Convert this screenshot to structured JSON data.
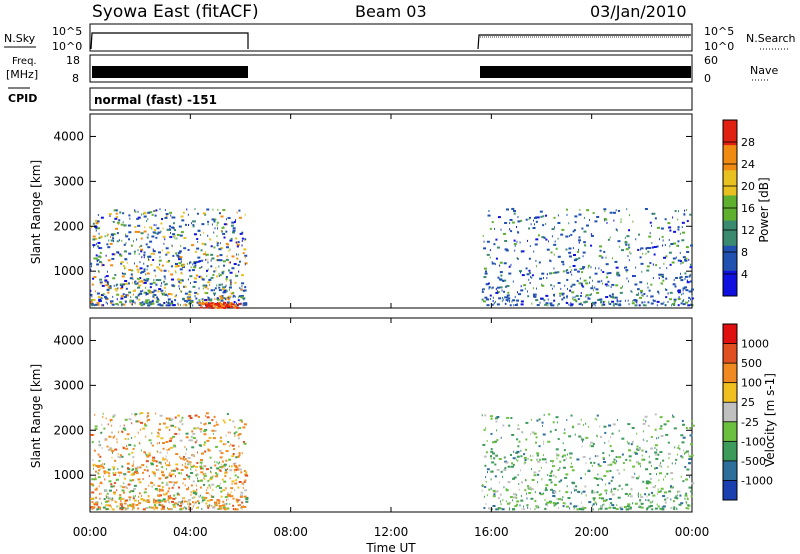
{
  "header": {
    "station": "Syowa East (fitACF)",
    "beam": "Beam 03",
    "date": "03/Jan/2010"
  },
  "status_panels": {
    "left_top_label": "N.Sky",
    "left_top_ticks": [
      "10^5",
      "10^0"
    ],
    "right_top_ticks": [
      "10^5",
      "10^0"
    ],
    "right_top_label": "N.Search",
    "left_mid_label_1": "Freq.",
    "left_mid_label_2": "[MHz]",
    "left_mid_ticks": [
      "18",
      "8"
    ],
    "right_mid_ticks": [
      "60",
      "0"
    ],
    "right_mid_label": "Nave",
    "cpid_label": "CPID",
    "cpid_value": "normal (fast) -151"
  },
  "chart_data": [
    {
      "type": "heatmap",
      "name": "power",
      "ylabel": "Slant Range [km]",
      "xlabel": "",
      "ylim": [
        180,
        4500
      ],
      "yticks": [
        "1000",
        "2000",
        "3000",
        "4000"
      ],
      "colorbar": {
        "label": "Power [dB]",
        "ticks": [
          "4",
          "8",
          "12",
          "16",
          "20",
          "24",
          "28"
        ],
        "colors": [
          "#1010e0",
          "#2050b0",
          "#3a8a70",
          "#60b030",
          "#e8c020",
          "#f08a10",
          "#e02010"
        ]
      },
      "data_intervals_ut": [
        [
          0,
          6.2
        ],
        [
          15.6,
          24
        ]
      ]
    },
    {
      "type": "heatmap",
      "name": "velocity",
      "ylabel": "Slant Range [km]",
      "xlabel": "Time UT",
      "ylim": [
        180,
        4500
      ],
      "yticks": [
        "1000",
        "2000",
        "3000",
        "4000"
      ],
      "xticks": [
        "00:00",
        "04:00",
        "08:00",
        "12:00",
        "16:00",
        "20:00",
        "00:00"
      ],
      "colorbar": {
        "label": "Velocity [m s-1]",
        "ticks": [
          "1000",
          "500",
          "100",
          "25",
          "-25",
          "-100",
          "-500",
          "-1000"
        ],
        "colors": [
          "#1a3fb0",
          "#2d6e9a",
          "#3c9a5a",
          "#6cc040",
          "#c0c0c0",
          "#f0c020",
          "#f08a20",
          "#e05020",
          "#e01010"
        ]
      },
      "data_intervals_ut": [
        [
          0,
          6.2
        ],
        [
          15.6,
          24
        ]
      ]
    }
  ]
}
